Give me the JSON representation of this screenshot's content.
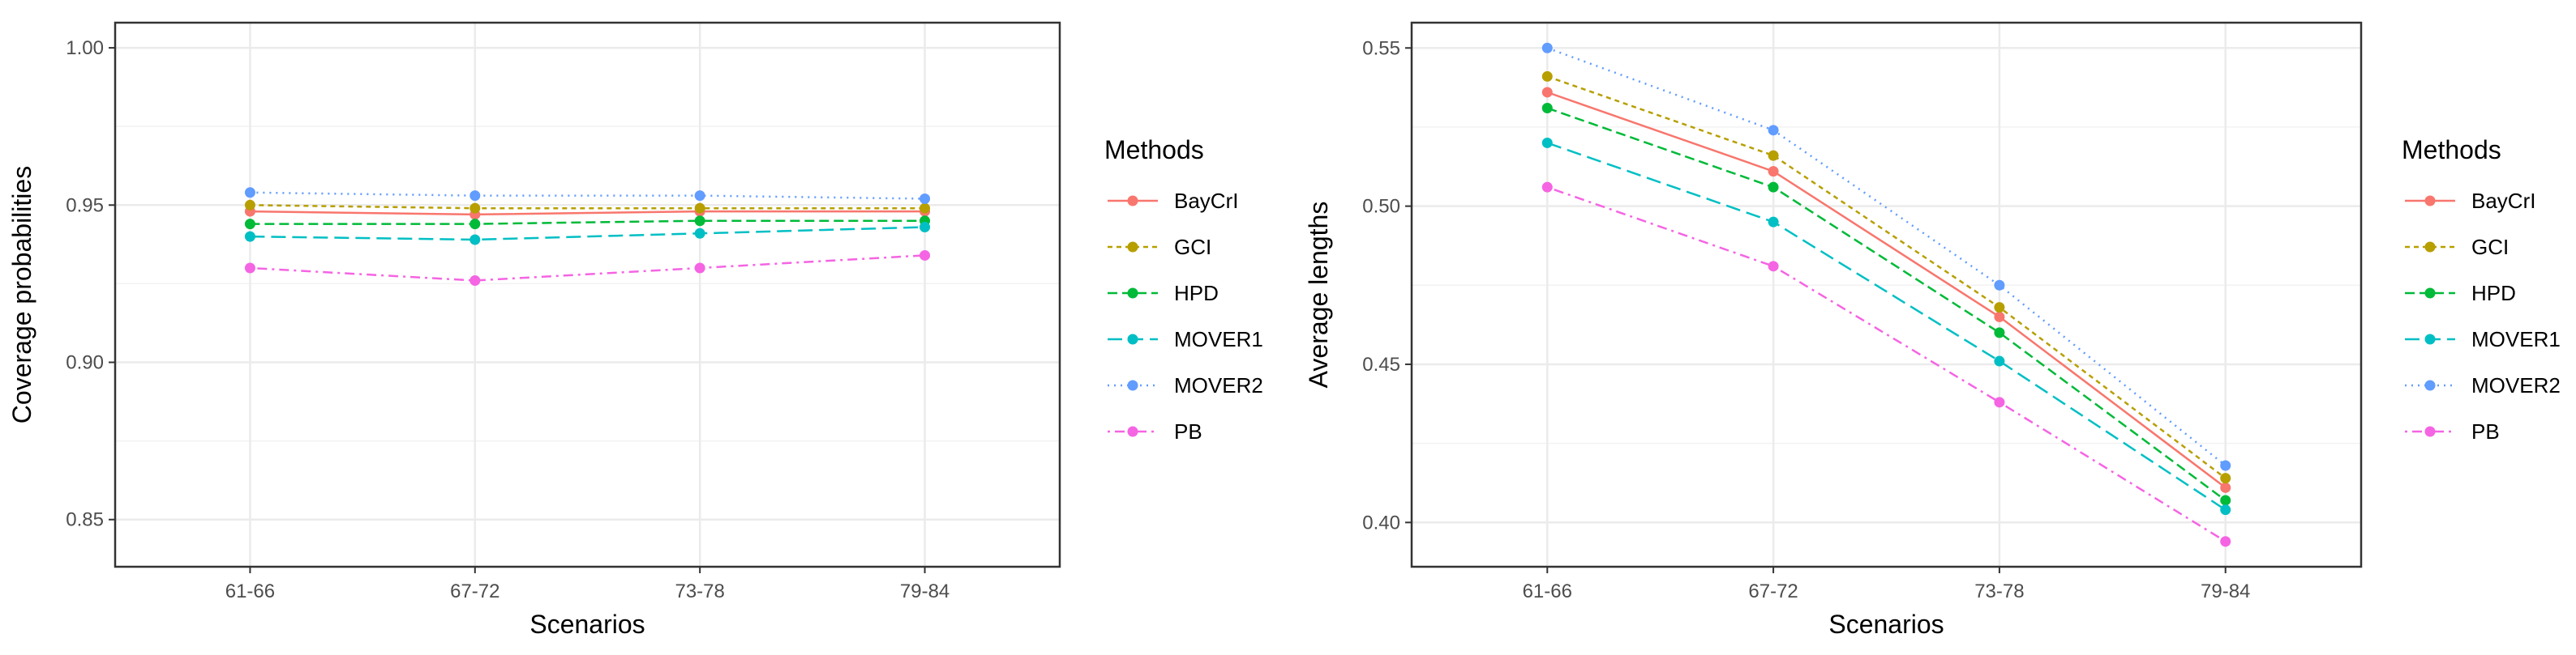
{
  "chart_data": [
    {
      "type": "line",
      "xlabel": "Scenarios",
      "ylabel": "Coverage probabilities",
      "categories": [
        "61-66",
        "67-72",
        "73-78",
        "79-84"
      ],
      "ylim": [
        0.835,
        1.008
      ],
      "yticks": [
        0.85,
        0.9,
        0.95,
        1.0
      ],
      "ytick_labels": [
        "0.85",
        "0.90",
        "0.95",
        "1.00"
      ],
      "grid": true,
      "legend_title": "Methods",
      "legend_position": "right",
      "series": [
        {
          "name": "BayCrI",
          "values": [
            0.948,
            0.947,
            0.948,
            0.948
          ]
        },
        {
          "name": "GCI",
          "values": [
            0.95,
            0.949,
            0.949,
            0.949
          ]
        },
        {
          "name": "HPD",
          "values": [
            0.944,
            0.944,
            0.945,
            0.945
          ]
        },
        {
          "name": "MOVER1",
          "values": [
            0.94,
            0.939,
            0.941,
            0.943
          ]
        },
        {
          "name": "MOVER2",
          "values": [
            0.954,
            0.953,
            0.953,
            0.952
          ]
        },
        {
          "name": "PB",
          "values": [
            0.93,
            0.926,
            0.93,
            0.934
          ]
        }
      ]
    },
    {
      "type": "line",
      "xlabel": "Scenarios",
      "ylabel": "Average lengths",
      "categories": [
        "61-66",
        "67-72",
        "73-78",
        "79-84"
      ],
      "ylim": [
        0.386,
        0.558
      ],
      "yticks": [
        0.4,
        0.45,
        0.5,
        0.55
      ],
      "ytick_labels": [
        "0.40",
        "0.45",
        "0.50",
        "0.55"
      ],
      "grid": true,
      "legend_title": "Methods",
      "legend_position": "right",
      "series": [
        {
          "name": "BayCrI",
          "values": [
            0.536,
            0.511,
            0.465,
            0.411
          ]
        },
        {
          "name": "GCI",
          "values": [
            0.541,
            0.516,
            0.468,
            0.414
          ]
        },
        {
          "name": "HPD",
          "values": [
            0.531,
            0.506,
            0.46,
            0.407
          ]
        },
        {
          "name": "MOVER1",
          "values": [
            0.52,
            0.495,
            0.451,
            0.404
          ]
        },
        {
          "name": "MOVER2",
          "values": [
            0.55,
            0.524,
            0.475,
            0.418
          ]
        },
        {
          "name": "PB",
          "values": [
            0.506,
            0.481,
            0.438,
            0.394
          ]
        }
      ]
    }
  ],
  "series_styles": [
    {
      "name": "BayCrI",
      "color": "#F8766D",
      "dash": "solid"
    },
    {
      "name": "GCI",
      "color": "#B79F00",
      "dash": "dashed-short"
    },
    {
      "name": "HPD",
      "color": "#00BA38",
      "dash": "dashed"
    },
    {
      "name": "MOVER1",
      "color": "#00BFC4",
      "dash": "long-dash"
    },
    {
      "name": "MOVER2",
      "color": "#619CFF",
      "dash": "dotted"
    },
    {
      "name": "PB",
      "color": "#F564E3",
      "dash": "dot-dash"
    }
  ]
}
